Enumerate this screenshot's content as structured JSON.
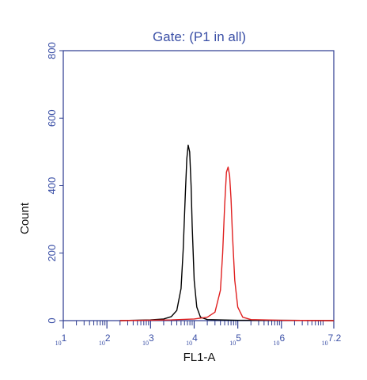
{
  "chart_data": {
    "type": "line",
    "title": "Gate: (P1 in all)",
    "xlabel": "FL1-A",
    "ylabel": "Count",
    "x_scale": "log",
    "xlim": [
      10,
      15848932
    ],
    "ylim": [
      0,
      800
    ],
    "y_ticks": [
      {
        "value": 0,
        "label": "0"
      },
      {
        "value": 200,
        "label": "200"
      },
      {
        "value": 400,
        "label": "400"
      },
      {
        "value": 600,
        "label": "600"
      },
      {
        "value": 800,
        "label": "800"
      }
    ],
    "x_ticks": [
      {
        "value": 10,
        "base": "10",
        "exp": "1"
      },
      {
        "value": 100,
        "base": "10",
        "exp": "2"
      },
      {
        "value": 1000,
        "base": "10",
        "exp": "3"
      },
      {
        "value": 10000,
        "base": "10",
        "exp": "4"
      },
      {
        "value": 100000,
        "base": "10",
        "exp": "5"
      },
      {
        "value": 1000000,
        "base": "10",
        "exp": "6"
      },
      {
        "value": 15848932,
        "base": "10",
        "exp": "7.2"
      }
    ],
    "grid": false,
    "legend": "none",
    "series": [
      {
        "color": "#000000",
        "x": [
          200,
          1000,
          2000,
          3000,
          4000,
          5000,
          5600,
          6300,
          6800,
          7300,
          7900,
          8500,
          9000,
          10000,
          11500,
          14000,
          20000,
          100000,
          1000000,
          15848932
        ],
        "y": [
          0,
          2,
          5,
          12,
          30,
          95,
          210,
          380,
          480,
          520,
          500,
          400,
          280,
          120,
          40,
          10,
          3,
          1,
          1,
          0
        ]
      },
      {
        "color": "#e02020",
        "x": [
          200,
          3000,
          10000,
          20000,
          30000,
          40000,
          45000,
          50000,
          55000,
          60000,
          65000,
          70000,
          75000,
          85000,
          100000,
          130000,
          200000,
          1000000,
          15848932
        ],
        "y": [
          0,
          2,
          5,
          10,
          25,
          90,
          200,
          340,
          440,
          455,
          430,
          360,
          260,
          120,
          40,
          10,
          3,
          1,
          0
        ]
      }
    ]
  }
}
